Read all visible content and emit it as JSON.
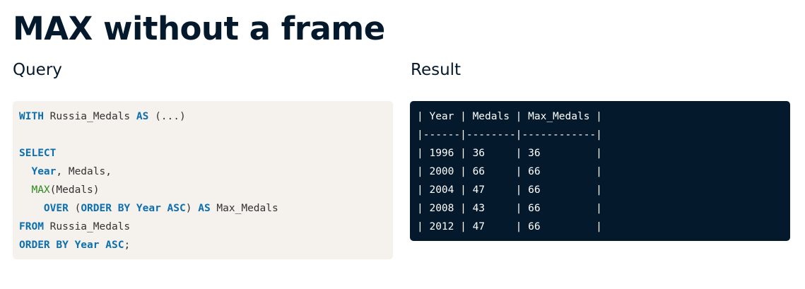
{
  "page": {
    "title": "MAX without a frame"
  },
  "query": {
    "label": "Query",
    "lines": [
      [
        {
          "t": "WITH",
          "c": "kw"
        },
        {
          "t": " Russia_Medals "
        },
        {
          "t": "AS",
          "c": "kw"
        },
        {
          "t": " (...)"
        }
      ],
      [],
      [
        {
          "t": "SELECT",
          "c": "kw"
        }
      ],
      [
        {
          "t": "  "
        },
        {
          "t": "Year",
          "c": "kw"
        },
        {
          "t": ", Medals,"
        }
      ],
      [
        {
          "t": "  "
        },
        {
          "t": "MAX",
          "c": "fn"
        },
        {
          "t": "(Medals)"
        }
      ],
      [
        {
          "t": "    "
        },
        {
          "t": "OVER",
          "c": "kw"
        },
        {
          "t": " ("
        },
        {
          "t": "ORDER BY",
          "c": "kw"
        },
        {
          "t": " "
        },
        {
          "t": "Year",
          "c": "kw"
        },
        {
          "t": " "
        },
        {
          "t": "ASC",
          "c": "kw"
        },
        {
          "t": ") "
        },
        {
          "t": "AS",
          "c": "kw"
        },
        {
          "t": " Max_Medals"
        }
      ],
      [
        {
          "t": "FROM",
          "c": "kw"
        },
        {
          "t": " Russia_Medals"
        }
      ],
      [
        {
          "t": "ORDER BY",
          "c": "kw"
        },
        {
          "t": " "
        },
        {
          "t": "Year",
          "c": "kw"
        },
        {
          "t": " "
        },
        {
          "t": "ASC",
          "c": "kw"
        },
        {
          "t": ";"
        }
      ]
    ]
  },
  "result": {
    "label": "Result",
    "lines": [
      "| Year | Medals | Max_Medals |",
      "|------|--------|------------|",
      "| 1996 | 36     | 36         |",
      "| 2000 | 66     | 66         |",
      "| 2004 | 47     | 66         |",
      "| 2008 | 43     | 66         |",
      "| 2012 | 47     | 66         |"
    ]
  },
  "colors": {
    "title_text": "#05192d",
    "query_background": "#f5f1ec",
    "result_background": "#05192d",
    "keyword": "#0b6fb0",
    "function": "#2d8a1e"
  }
}
